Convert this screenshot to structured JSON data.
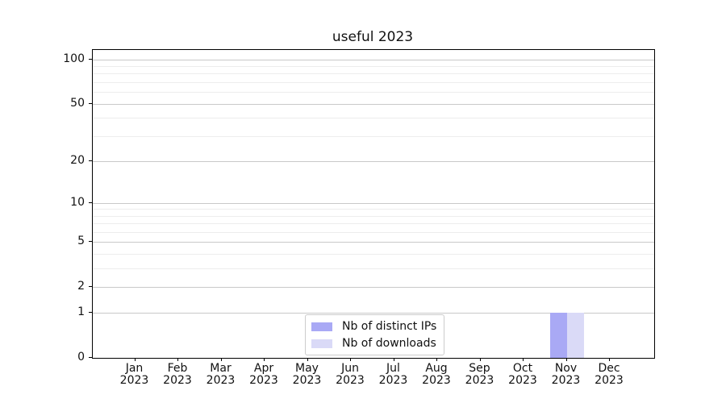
{
  "title": "useful 2023",
  "chart_data": {
    "type": "bar",
    "title": "useful 2023",
    "categories": [
      "Jan 2023",
      "Feb 2023",
      "Mar 2023",
      "Apr 2023",
      "May 2023",
      "Jun 2023",
      "Jul 2023",
      "Aug 2023",
      "Sep 2023",
      "Oct 2023",
      "Nov 2023",
      "Dec 2023"
    ],
    "series": [
      {
        "name": "Nb of distinct IPs",
        "color": "#a9a9f5",
        "values": [
          0,
          0,
          0,
          0,
          0,
          0,
          0,
          0,
          0,
          0,
          1,
          0
        ]
      },
      {
        "name": "Nb of downloads",
        "color": "#dadaf7",
        "values": [
          0,
          0,
          0,
          0,
          0,
          0,
          0,
          0,
          0,
          0,
          1,
          0
        ]
      }
    ],
    "xlabel": "",
    "ylabel": "",
    "yscale": "log1p",
    "yticks": [
      0,
      1,
      2,
      5,
      10,
      20,
      50,
      100
    ],
    "yticks_minor": [
      3,
      4,
      6,
      7,
      8,
      9,
      30,
      40,
      60,
      70,
      80,
      90
    ],
    "ylim": [
      0,
      115
    ],
    "grid": "both",
    "legend_position": "lower center"
  },
  "colors": {
    "grid_major": "#c9c9c9",
    "grid_minor": "#ededed",
    "axis": "#000000",
    "legend_border": "#cccccc",
    "background": "#ffffff"
  }
}
